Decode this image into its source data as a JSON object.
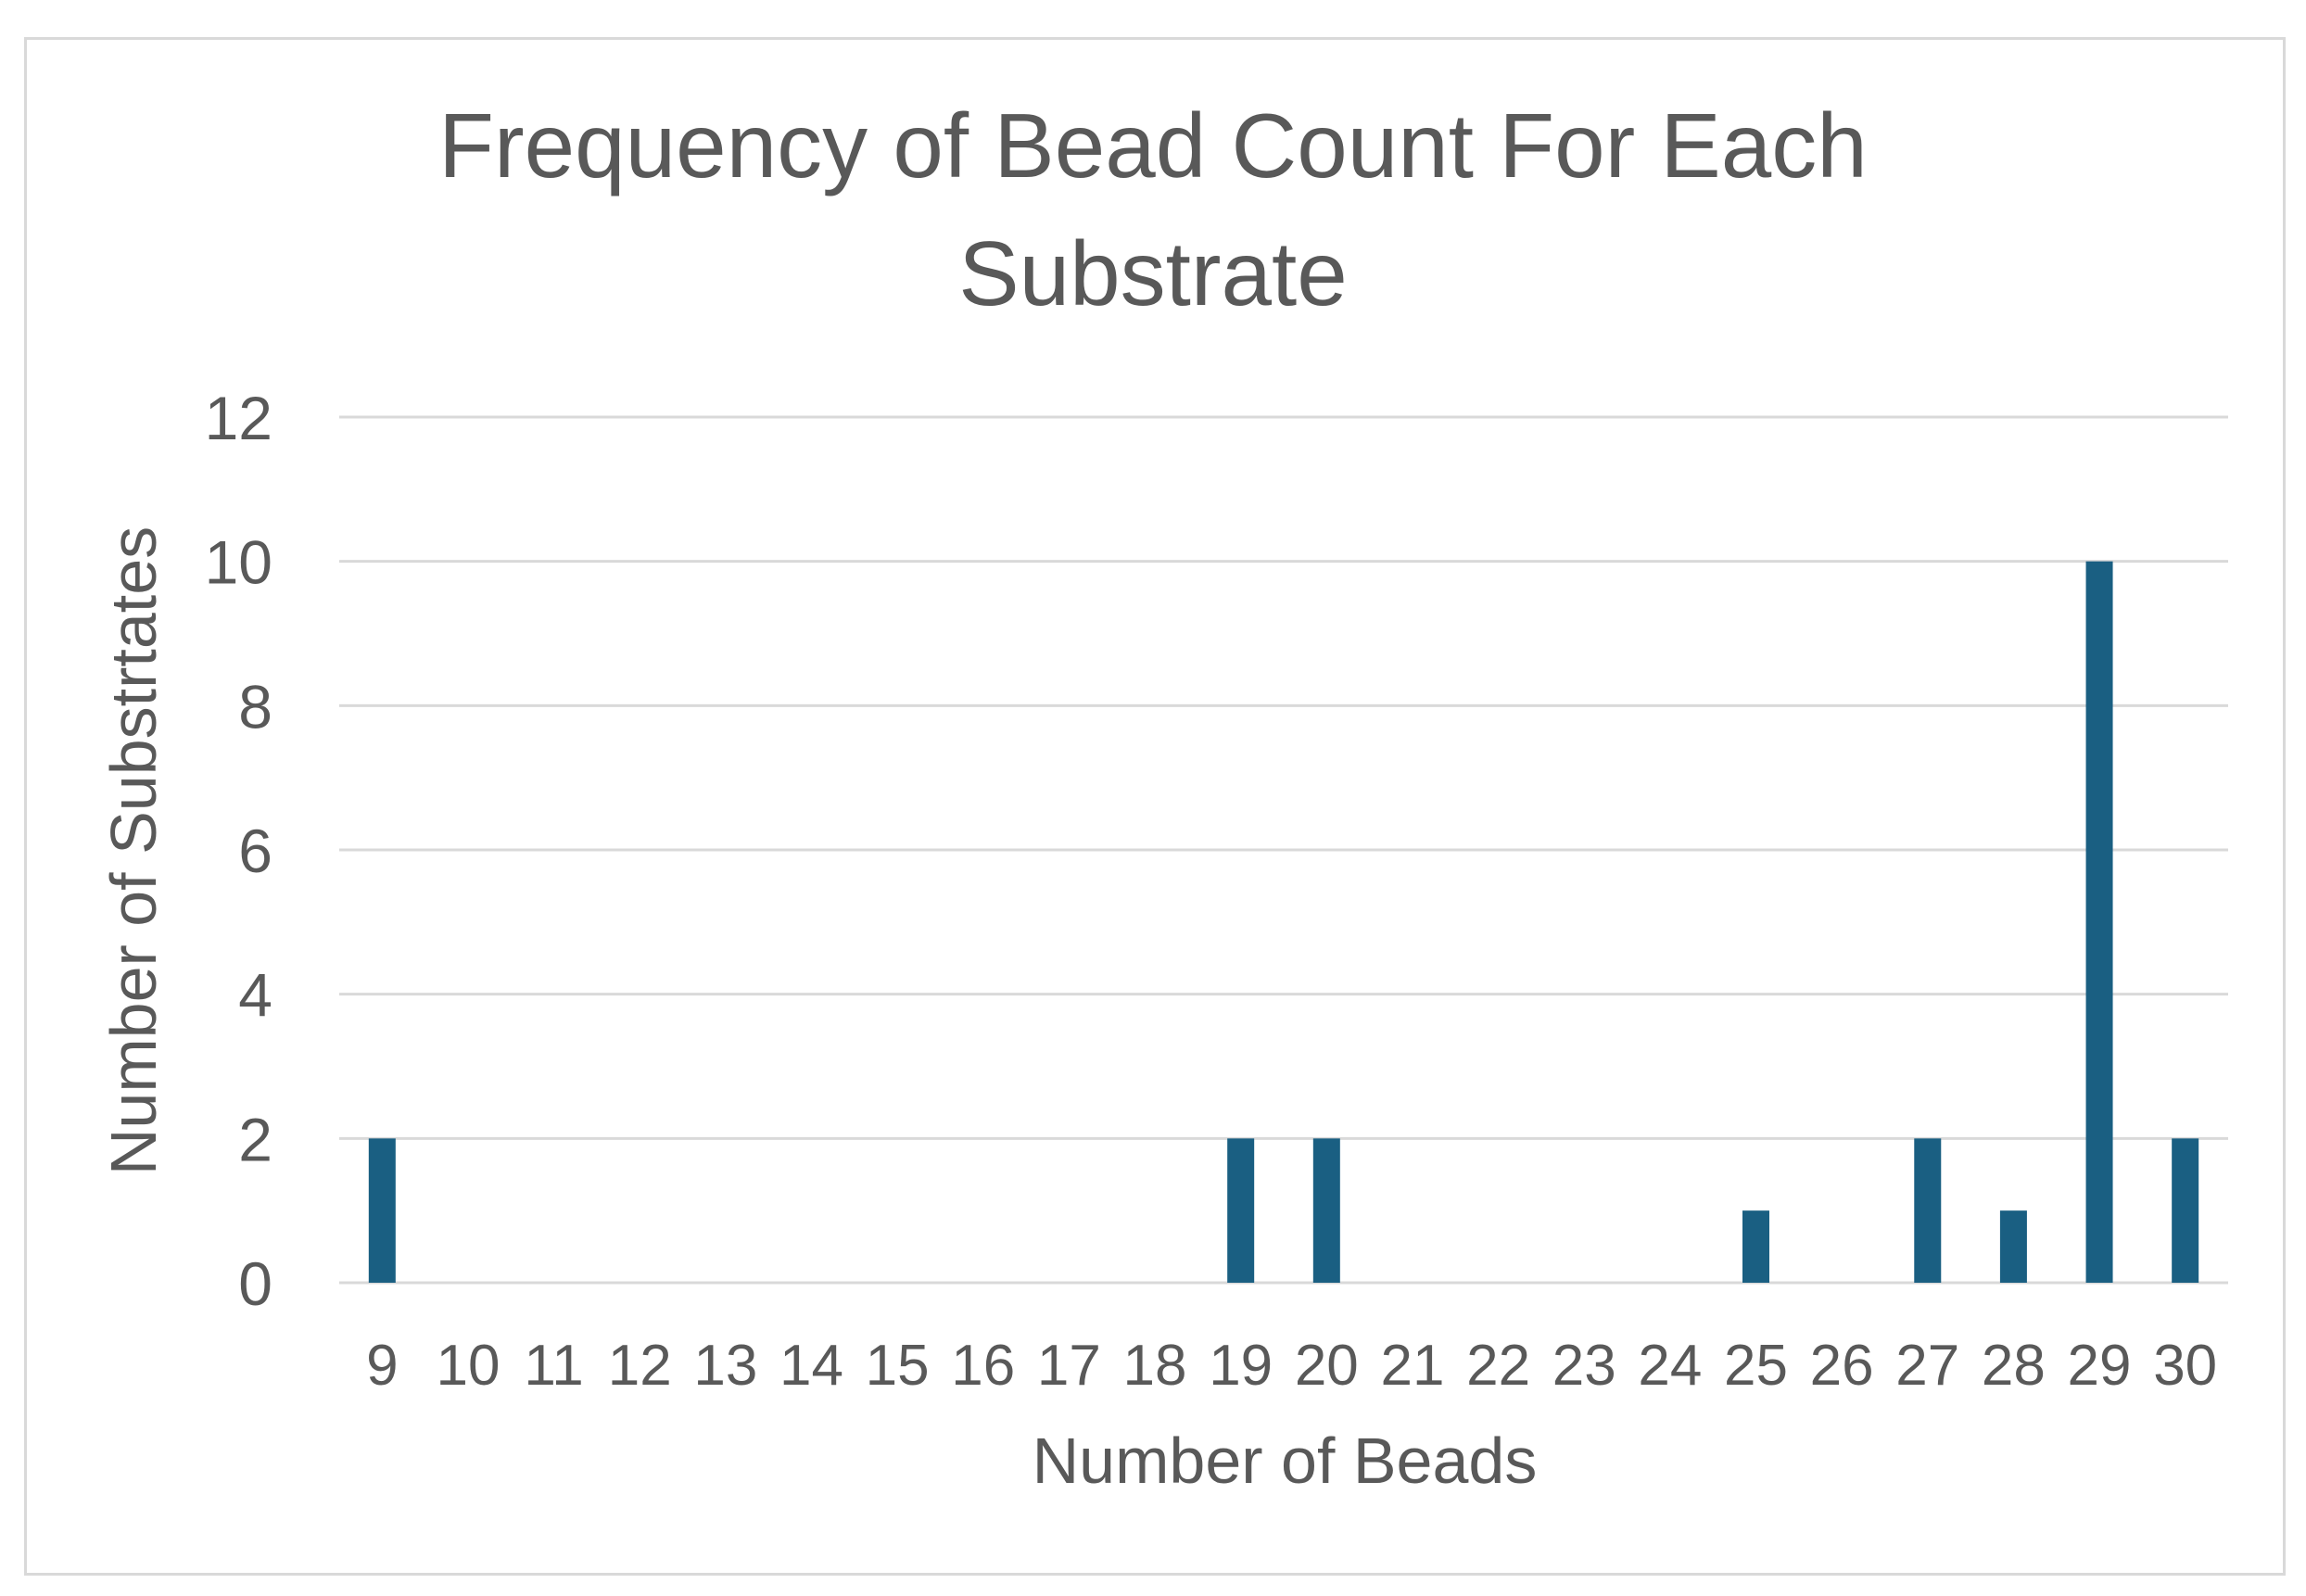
{
  "chart_data": {
    "type": "bar",
    "title_lines": [
      "Frequency of Bead Count For Each",
      "Substrate"
    ],
    "xlabel": "Number of Beads",
    "ylabel": "Number of Substrtates",
    "categories": [
      "9",
      "10",
      "11",
      "12",
      "13",
      "14",
      "15",
      "16",
      "17",
      "18",
      "19",
      "20",
      "21",
      "22",
      "23",
      "24",
      "25",
      "26",
      "27",
      "28",
      "29",
      "30"
    ],
    "values": [
      2,
      0,
      0,
      0,
      0,
      0,
      0,
      0,
      0,
      0,
      2,
      2,
      0,
      0,
      0,
      0,
      1,
      0,
      2,
      1,
      10,
      2
    ],
    "ylim": [
      0,
      12
    ],
    "yticks": [
      "0",
      "2",
      "4",
      "6",
      "8",
      "10",
      "12"
    ],
    "grid": true,
    "legend": "none",
    "colors": {
      "bar": "#1a5f82",
      "grid": "#d9d9d9",
      "text": "#595959"
    }
  }
}
